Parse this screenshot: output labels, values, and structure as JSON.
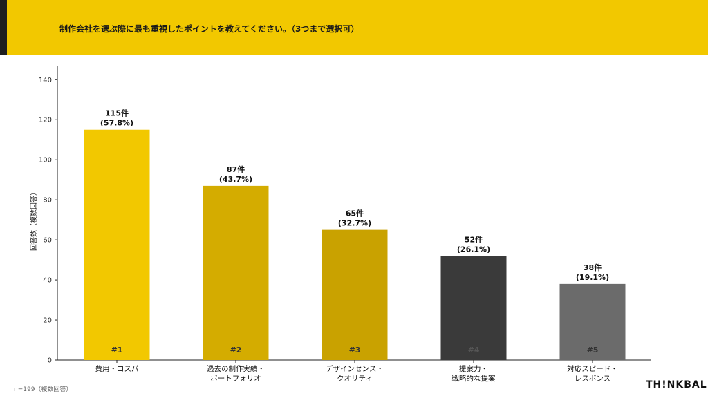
{
  "header": {
    "title": "制作会社を選ぶ際に最も重視したポイントを教えてください。（3つまで選択可）",
    "accent_color": "#f2c800"
  },
  "chart_data": {
    "type": "bar",
    "ylabel": "回答数（複数回答）",
    "ylim": [
      0,
      147
    ],
    "yticks": [
      0,
      20,
      40,
      60,
      80,
      100,
      120,
      140
    ],
    "grid": false,
    "categories": [
      [
        "費用・コスパ"
      ],
      [
        "過去の制作実績・",
        "ポートフォリオ"
      ],
      [
        "デザインセンス・",
        "クオリティ"
      ],
      [
        "提案力・",
        "戦略的な提案"
      ],
      [
        "対応スピード・",
        "レスポンス"
      ]
    ],
    "values": [
      115,
      87,
      65,
      52,
      38
    ],
    "value_labels": [
      "115件",
      "87件",
      "65件",
      "52件",
      "38件"
    ],
    "percent_labels": [
      "(57.8%)",
      "(43.7%)",
      "(32.7%)",
      "(26.1%)",
      "(19.1%)"
    ],
    "rank_labels": [
      "#1",
      "#2",
      "#3",
      "#4",
      "#5"
    ],
    "colors": [
      "#f2c800",
      "#d4ac00",
      "#c9a200",
      "#3a3a3a",
      "#6b6b6b"
    ],
    "rank_colors": [
      "#333333",
      "#333333",
      "#333333",
      "#555555",
      "#333333"
    ]
  },
  "footer": {
    "note": "n=199（複数回答）",
    "brand": "TH!NKBAL"
  }
}
